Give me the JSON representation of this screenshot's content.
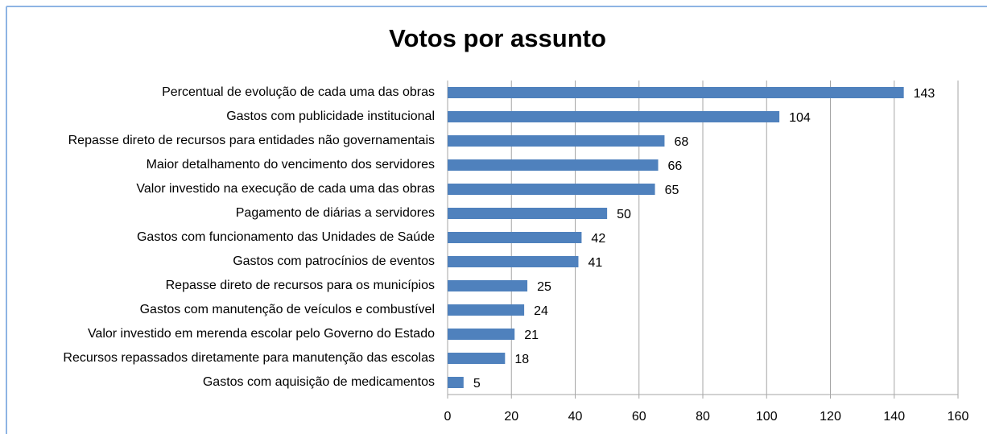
{
  "chart_data": {
    "type": "barh",
    "title": "Votos por assunto",
    "categories": [
      "Percentual de evolução de cada uma das obras",
      "Gastos com publicidade institucional",
      "Repasse direto de recursos para entidades não governamentais",
      "Maior detalhamento do vencimento dos servidores",
      "Valor investido na execução de cada uma das obras",
      "Pagamento de diárias a servidores",
      "Gastos com funcionamento das Unidades de Saúde",
      "Gastos com patrocínios de eventos",
      "Repasse direto de recursos para os municípios",
      "Gastos com manutenção de veículos e combustível",
      "Valor investido em merenda escolar pelo Governo do Estado",
      "Recursos repassados diretamente para manutenção das escolas",
      "Gastos com aquisição de medicamentos"
    ],
    "values": [
      143,
      104,
      68,
      66,
      65,
      50,
      42,
      41,
      25,
      24,
      21,
      18,
      5
    ],
    "color": "#4f81bd",
    "xlim": [
      0,
      160
    ],
    "xticks": [
      0,
      20,
      40,
      60,
      80,
      100,
      120,
      140,
      160
    ],
    "grid": true
  }
}
